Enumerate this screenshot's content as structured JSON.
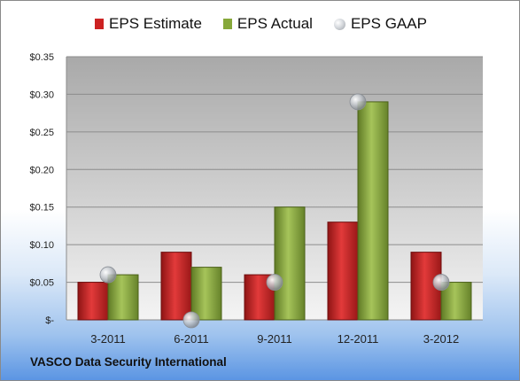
{
  "chart_data": {
    "type": "bar",
    "categories": [
      "3-2011",
      "6-2011",
      "9-2011",
      "12-2011",
      "3-2012"
    ],
    "series": [
      {
        "name": "EPS Estimate",
        "values": [
          0.05,
          0.09,
          0.06,
          0.13,
          0.09
        ],
        "color": "#cc2222"
      },
      {
        "name": "EPS Actual",
        "values": [
          0.06,
          0.07,
          0.15,
          0.29,
          0.05
        ],
        "color": "#86a83a"
      },
      {
        "name": "EPS GAAP",
        "values": [
          0.06,
          0.0,
          0.05,
          0.29,
          0.05
        ],
        "color": "#b8bcc2",
        "marker": "circle"
      }
    ],
    "ylim": [
      0,
      0.35
    ],
    "yticks": [
      0,
      0.05,
      0.1,
      0.15,
      0.2,
      0.25,
      0.3,
      0.35
    ],
    "ytick_labels": [
      "$-",
      "$0.05",
      "$0.10",
      "$0.15",
      "$0.20",
      "$0.25",
      "$0.30",
      "$0.35"
    ],
    "grid": true,
    "legend": "top"
  },
  "footer": {
    "title": "VASCO Data Security International"
  }
}
